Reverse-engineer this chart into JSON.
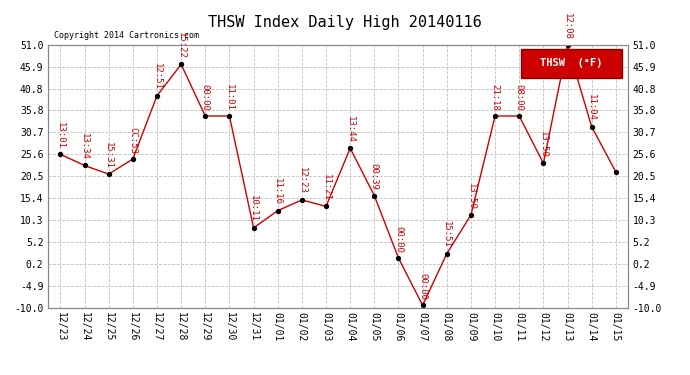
{
  "title": "THSW Index Daily High 20140116",
  "copyright": "Copyright 2014 Cartronics.com",
  "legend_label": "THSW  (°F)",
  "x_labels": [
    "12/23",
    "12/24",
    "12/25",
    "12/26",
    "12/27",
    "12/28",
    "12/29",
    "12/30",
    "12/31",
    "01/01",
    "01/02",
    "01/03",
    "01/04",
    "01/05",
    "01/06",
    "01/07",
    "01/08",
    "01/09",
    "01/10",
    "01/11",
    "01/12",
    "01/13",
    "01/14",
    "01/15"
  ],
  "y_values": [
    25.6,
    23.0,
    21.0,
    24.5,
    39.2,
    46.5,
    34.5,
    34.5,
    8.5,
    12.5,
    15.0,
    13.5,
    27.0,
    16.0,
    1.5,
    -9.5,
    2.5,
    11.5,
    34.5,
    34.5,
    23.5,
    51.0,
    32.0,
    21.5
  ],
  "point_labels": [
    "13:01",
    "13:34",
    "15:31",
    "CC:53",
    "12:51",
    "15:22",
    "00:00",
    "11:01",
    "10:11",
    "11:16",
    "12:23",
    "11:21",
    "13:44",
    "00:39",
    "00:00",
    "00:00",
    "15:51",
    "13:50",
    "21:18",
    "08:00",
    "13:50",
    "12:08",
    "11:04",
    ""
  ],
  "ylim_min": -10.0,
  "ylim_max": 51.0,
  "yticks": [
    -10.0,
    -4.9,
    0.2,
    5.2,
    10.3,
    15.4,
    20.5,
    25.6,
    30.7,
    35.8,
    40.8,
    45.9,
    51.0
  ],
  "line_color": "#cc0000",
  "marker_color": "#000000",
  "bg_color": "#ffffff",
  "grid_color": "#c0c0c0",
  "title_fontsize": 11,
  "label_fontsize": 7,
  "annot_fontsize": 6.5,
  "legend_bg": "#cc0000",
  "legend_fg": "#ffffff"
}
